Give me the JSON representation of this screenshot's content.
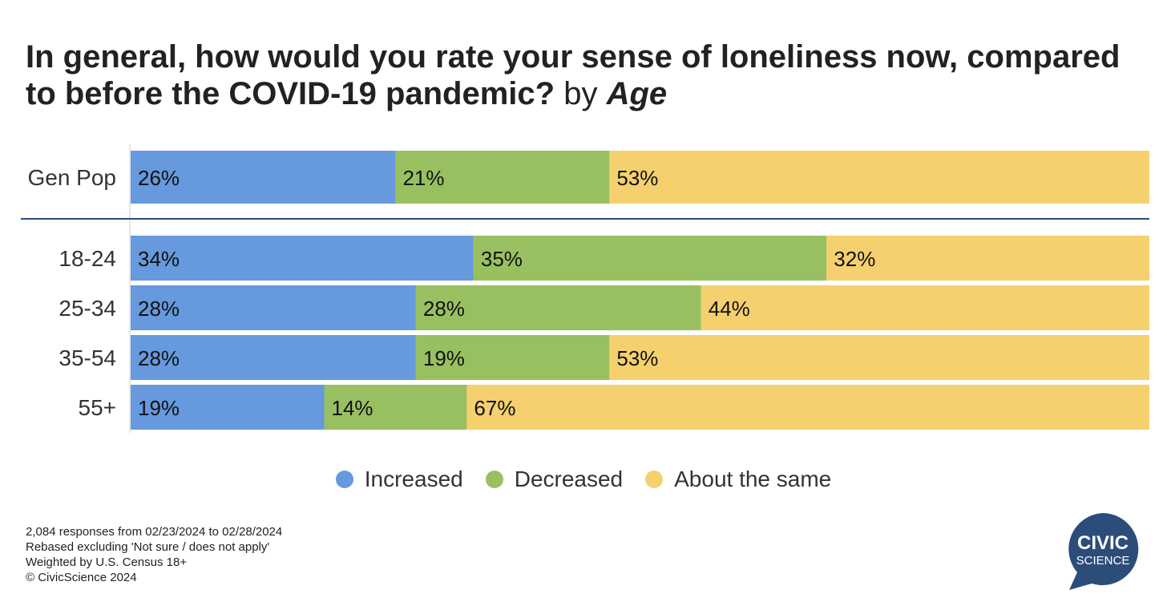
{
  "title": {
    "main": "In general, how would you rate your sense of loneliness now, compared to before the COVID-19 pandemic?",
    "by": "by",
    "age": "Age"
  },
  "legend": [
    {
      "label": "Increased",
      "color": "#6699dd"
    },
    {
      "label": "Decreased",
      "color": "#99c060"
    },
    {
      "label": "About the same",
      "color": "#f5d06e"
    }
  ],
  "footnotes": [
    "2,084 responses from 02/23/2024 to 02/28/2024",
    "Rebased excluding 'Not sure / does not apply'",
    "Weighted by U.S. Census 18+",
    "© CivicScience 2024"
  ],
  "logo": {
    "line1": "CIVIC",
    "line2": "SCIENCE",
    "color": "#2c4d7a"
  },
  "chart_data": {
    "type": "bar",
    "orientation": "horizontal",
    "stacked": true,
    "categories": [
      "Gen Pop",
      "18-24",
      "25-34",
      "35-54",
      "55+"
    ],
    "series": [
      {
        "name": "Increased",
        "color": "#6699dd",
        "values": [
          26,
          34,
          28,
          28,
          19
        ],
        "labels": [
          "26%",
          "34%",
          "28%",
          "28%",
          "19%"
        ]
      },
      {
        "name": "Decreased",
        "color": "#99c060",
        "values": [
          21,
          35,
          28,
          19,
          14
        ],
        "labels": [
          "21%",
          "35%",
          "28%",
          "19%",
          "14%"
        ]
      },
      {
        "name": "About the same",
        "color": "#f5d06e",
        "values": [
          53,
          32,
          44,
          53,
          67
        ],
        "labels": [
          "53%",
          "32%",
          "44%",
          "53%",
          "67%"
        ]
      }
    ],
    "legend_position": "bottom",
    "grid": false
  }
}
